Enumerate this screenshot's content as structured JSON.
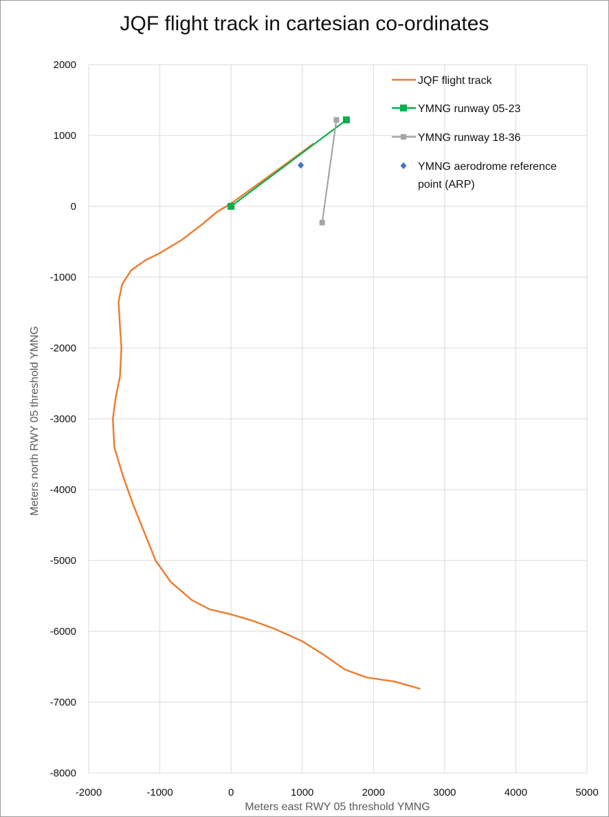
{
  "chart_data": {
    "type": "scatter",
    "title": "JQF flight track in cartesian co-ordinates",
    "xlabel": "Meters east RWY 05 threshold YMNG",
    "ylabel": "Meters north RWY 05 threshold YMNG",
    "xlim": [
      -2000,
      5000
    ],
    "ylim": [
      -8000,
      2000
    ],
    "xticks": [
      "-2000",
      "-1000",
      "0",
      "1000",
      "2000",
      "3000",
      "4000",
      "5000"
    ],
    "yticks": [
      "2000",
      "1000",
      "0",
      "-1000",
      "-2000",
      "-3000",
      "-4000",
      "-5000",
      "-6000",
      "-7000",
      "-8000"
    ],
    "grid": true,
    "legend_position": "top-right",
    "series": [
      {
        "name": "JQF flight track",
        "color": "#ed7d31",
        "marker": "none",
        "points": [
          [
            1150,
            880
          ],
          [
            800,
            620
          ],
          [
            400,
            330
          ],
          [
            0,
            40
          ],
          [
            -200,
            -80
          ],
          [
            -400,
            -250
          ],
          [
            -700,
            -480
          ],
          [
            -1000,
            -660
          ],
          [
            -1200,
            -760
          ],
          [
            -1400,
            -900
          ],
          [
            -1530,
            -1100
          ],
          [
            -1580,
            -1350
          ],
          [
            -1560,
            -1700
          ],
          [
            -1540,
            -2000
          ],
          [
            -1560,
            -2400
          ],
          [
            -1620,
            -2700
          ],
          [
            -1660,
            -3000
          ],
          [
            -1640,
            -3400
          ],
          [
            -1520,
            -3800
          ],
          [
            -1380,
            -4200
          ],
          [
            -1220,
            -4600
          ],
          [
            -1060,
            -5000
          ],
          [
            -850,
            -5300
          ],
          [
            -550,
            -5560
          ],
          [
            -300,
            -5690
          ],
          [
            0,
            -5760
          ],
          [
            300,
            -5850
          ],
          [
            600,
            -5960
          ],
          [
            1000,
            -6140
          ],
          [
            1300,
            -6330
          ],
          [
            1600,
            -6540
          ],
          [
            1900,
            -6650
          ],
          [
            2300,
            -6710
          ],
          [
            2650,
            -6810
          ]
        ]
      },
      {
        "name": "YMNG runway 05-23",
        "color": "#00b050",
        "marker": "square",
        "points": [
          [
            0,
            0
          ],
          [
            1620,
            1220
          ]
        ]
      },
      {
        "name": "YMNG runway 18-36",
        "color": "#a5a5a5",
        "marker": "square",
        "points": [
          [
            1480,
            1220
          ],
          [
            1280,
            -230
          ]
        ]
      },
      {
        "name": "YMNG aerodrome reference point (ARP)",
        "legend_lines": [
          "YMNG aerodrome reference",
          "point (ARP)"
        ],
        "color": "#4472c4",
        "marker": "diamond",
        "points": [
          [
            980,
            580
          ]
        ]
      }
    ]
  }
}
